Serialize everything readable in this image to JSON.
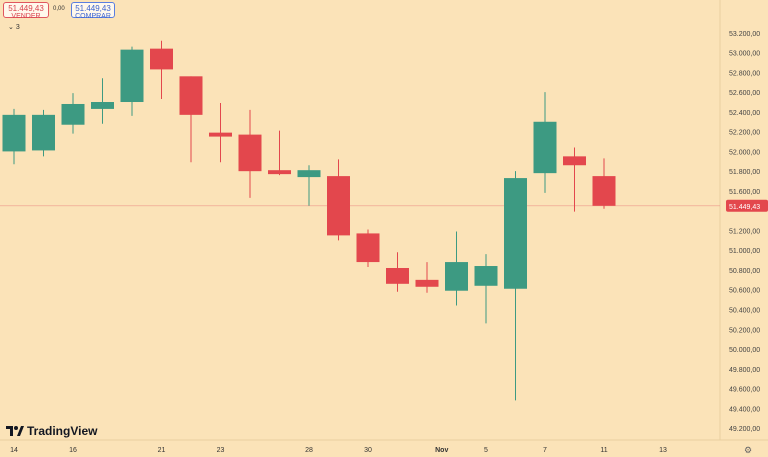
{
  "trade_panel": {
    "sell_price": "51.449,43",
    "sell_label": "VENDER",
    "spread": "0,00",
    "buy_price": "51.449,43",
    "buy_label": "COMPRAR"
  },
  "indicator": {
    "label": "3"
  },
  "logo": {
    "text": "TradingView"
  },
  "icons": {
    "chevron": "chevron-down-icon",
    "logo": "tradingview-logo-icon",
    "settings": "gear-icon"
  },
  "colors": {
    "background": "#fbe3b8",
    "up": "#3d9a82",
    "down": "#e3474d",
    "current_price_line": "#e87a7a"
  },
  "chart_data": {
    "type": "candlestick",
    "x_tick_labels": [
      "14",
      "16",
      "21",
      "23",
      "28",
      "30",
      "Nov",
      "5",
      "7",
      "11",
      "13"
    ],
    "y_tick_labels": [
      "53.200,00",
      "53.000,00",
      "52.800,00",
      "52.600,00",
      "52.400,00",
      "52.200,00",
      "52.000,00",
      "51.800,00",
      "51.600,00",
      "51.449,43",
      "51.200,00",
      "51.000,00",
      "50.800,00",
      "50.600,00",
      "50.400,00",
      "50.200,00",
      "50.000,00",
      "49.800,00",
      "49.600,00",
      "49.400,00",
      "49.200,00"
    ],
    "ylim": [
      49150,
      53330
    ],
    "current_price": 51449.43,
    "current_price_label": "51.449,43",
    "candles": [
      {
        "open": 52000,
        "high": 52430,
        "low": 51870,
        "close": 52370
      },
      {
        "open": 52010,
        "high": 52420,
        "low": 51950,
        "close": 52370
      },
      {
        "open": 52270,
        "high": 52590,
        "low": 52180,
        "close": 52480
      },
      {
        "open": 52430,
        "high": 52740,
        "low": 52280,
        "close": 52500
      },
      {
        "open": 52500,
        "high": 53060,
        "low": 52360,
        "close": 53030
      },
      {
        "open": 53040,
        "high": 53120,
        "low": 52530,
        "close": 52830
      },
      {
        "open": 52760,
        "high": 52760,
        "low": 51890,
        "close": 52370
      },
      {
        "open": 52190,
        "high": 52490,
        "low": 51890,
        "close": 52150
      },
      {
        "open": 52170,
        "high": 52420,
        "low": 51530,
        "close": 51800
      },
      {
        "open": 51810,
        "high": 52210,
        "low": 51760,
        "close": 51770
      },
      {
        "open": 51740,
        "high": 51860,
        "low": 51450,
        "close": 51810
      },
      {
        "open": 51750,
        "high": 51920,
        "low": 51100,
        "close": 51150
      },
      {
        "open": 51170,
        "high": 51210,
        "low": 50830,
        "close": 50880
      },
      {
        "open": 50820,
        "high": 50980,
        "low": 50580,
        "close": 50660
      },
      {
        "open": 50700,
        "high": 50880,
        "low": 50570,
        "close": 50630
      },
      {
        "open": 50590,
        "high": 51190,
        "low": 50440,
        "close": 50880
      },
      {
        "open": 50640,
        "high": 50960,
        "low": 50260,
        "close": 50840
      },
      {
        "open": 50610,
        "high": 51800,
        "low": 49480,
        "close": 51730
      },
      {
        "open": 51780,
        "high": 52600,
        "low": 51580,
        "close": 52300
      },
      {
        "open": 51950,
        "high": 52040,
        "low": 51390,
        "close": 51860
      },
      {
        "open": 51750,
        "high": 51930,
        "low": 51420,
        "close": 51450
      }
    ]
  }
}
